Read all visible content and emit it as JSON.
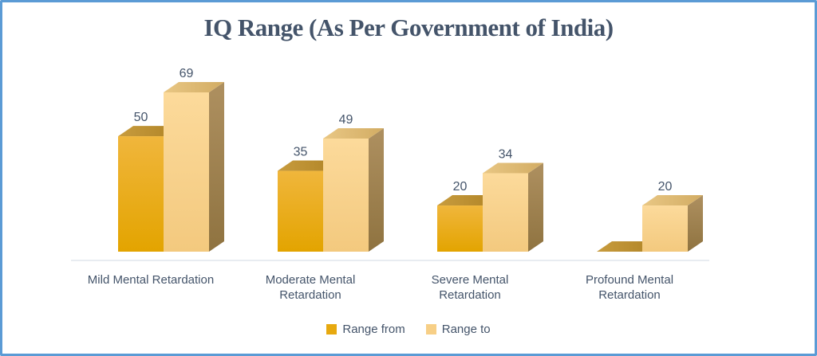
{
  "window": {
    "border_color": "#5B9BD5",
    "background": "#FFFFFF"
  },
  "chart_data": {
    "type": "bar",
    "variant": "3d-clustered-column",
    "title": "IQ Range (As Per Government of India)",
    "categories": [
      "Mild Mental Retardation",
      "Moderate Mental Retardation",
      "Severe Mental Retardation",
      "Profound Mental Retardation"
    ],
    "series": [
      {
        "name": "Range from",
        "values": [
          50,
          35,
          20,
          0
        ]
      },
      {
        "name": "Range to",
        "values": [
          69,
          49,
          34,
          20
        ]
      }
    ],
    "data_labels_shown": true,
    "y_axis": "hidden",
    "grid": false,
    "legend_position": "bottom",
    "colors": {
      "title_and_labels": "#44546A",
      "axis_line": "#E8ECF1",
      "series_styles": [
        {
          "front": [
            "#F0B63C",
            "#E3A400"
          ],
          "top": [
            "#C89C3E",
            "#AF8326"
          ],
          "side": [
            "#B08B2F",
            "#9A7820"
          ],
          "marker": "#E7A90F"
        },
        {
          "front": [
            "#FCDA9B",
            "#F3C97E"
          ],
          "top": [
            "#E9C784",
            "#D2AC63"
          ],
          "side": [
            "#AE9060",
            "#8F7340"
          ],
          "marker": "#F7CF86"
        }
      ]
    }
  }
}
